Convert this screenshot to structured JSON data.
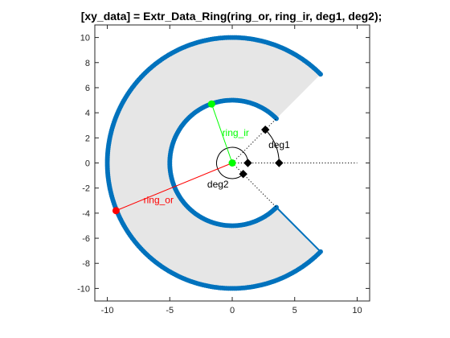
{
  "chart_data": {
    "type": "scatter",
    "title": "[xy_data] = Extr_Data_Ring(ring_or, ring_ir, deg1, deg2);",
    "xlabel": "",
    "ylabel": "",
    "xlim": [
      -11,
      11
    ],
    "ylim": [
      -11,
      11
    ],
    "xticks": [
      -10,
      -5,
      0,
      5,
      10
    ],
    "yticks": [
      -10,
      -8,
      -6,
      -4,
      -2,
      0,
      2,
      4,
      6,
      8,
      10
    ],
    "grid": false,
    "ring": {
      "center": [
        0,
        0
      ],
      "outer_radius": 10,
      "inner_radius": 5,
      "deg1_degrees": 45,
      "deg2_degrees": 45
    },
    "ring_outer_endpoints": [
      [
        7.07,
        7.07
      ],
      [
        7.07,
        -7.07
      ]
    ],
    "ring_inner_endpoints": [
      [
        3.54,
        3.54
      ],
      [
        3.54,
        -3.54
      ]
    ],
    "radius_markers": [
      {
        "name": "ring_or",
        "point": [
          -9.3,
          -3.8
        ],
        "color": "#ff0000"
      },
      {
        "name": "ring_ir",
        "point": [
          -1.65,
          4.7
        ],
        "color": "#00ff00"
      }
    ],
    "angle_markers": {
      "deg1_arc_points": [
        [
          3.75,
          0
        ],
        [
          2.65,
          2.65
        ]
      ],
      "deg2_arc_points": [
        [
          1.25,
          0
        ],
        [
          0.88,
          -0.88
        ]
      ]
    },
    "annotations": [
      {
        "text": "ring_or",
        "color": "#ff0000"
      },
      {
        "text": "ring_ir",
        "color": "#00ff00"
      },
      {
        "text": "deg1",
        "color": "#000000"
      },
      {
        "text": "deg2",
        "color": "#000000"
      }
    ],
    "colors": {
      "ring_points": "#0072bd",
      "fill": "#e6e6e6",
      "ring_or": "#ff0000",
      "ring_ir": "#00ff00",
      "markers": "#000000"
    }
  }
}
